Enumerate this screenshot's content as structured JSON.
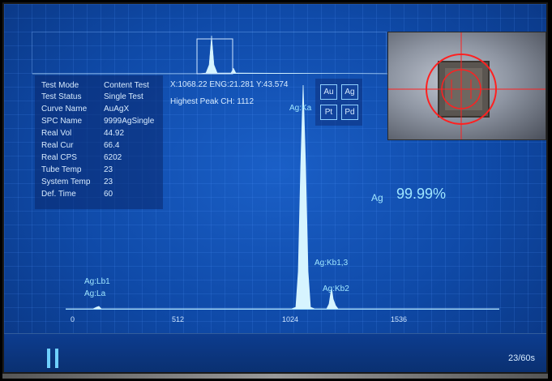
{
  "info": {
    "rows": [
      {
        "key": "Test Mode",
        "value": "Content Test"
      },
      {
        "key": "Test Status",
        "value": "Single Test"
      },
      {
        "key": "Curve Name",
        "value": "AuAgX"
      },
      {
        "key": "SPC Name",
        "value": "9999AgSingle"
      },
      {
        "key": "Real Vol",
        "value": "44.92"
      },
      {
        "key": "Real Cur",
        "value": "66.4"
      },
      {
        "key": "Real CPS",
        "value": "6202"
      },
      {
        "key": "Tube Temp",
        "value": "23"
      },
      {
        "key": "System Temp",
        "value": "23"
      },
      {
        "key": "Def. Time",
        "value": "60"
      }
    ]
  },
  "readout": "X:1068.22 ENG:21.281 Y:43.574",
  "highest_peak": "Highest Peak CH: 1112",
  "elements": [
    "Au",
    "Ag",
    "Pt",
    "Pd"
  ],
  "result": {
    "element": "Ag",
    "value": "99.99%"
  },
  "spectrum": {
    "ticks": [
      "0",
      "512",
      "1024",
      "1536"
    ],
    "peaks": [
      {
        "label": "Ag:Lb1"
      },
      {
        "label": "Ag:La"
      },
      {
        "label": "Ag:Ka"
      },
      {
        "label": "Ag:Kb1,3"
      },
      {
        "label": "Ag:Kb2"
      }
    ]
  },
  "timer": "23/60s",
  "colors": {
    "accent": "#9fe6ff",
    "background": "#0f4aa8",
    "spectrum": "#d6f4ff",
    "crosshair": "#ff2020"
  },
  "icons": {
    "pause": "pause-icon",
    "crosshair": "crosshair-icon"
  }
}
